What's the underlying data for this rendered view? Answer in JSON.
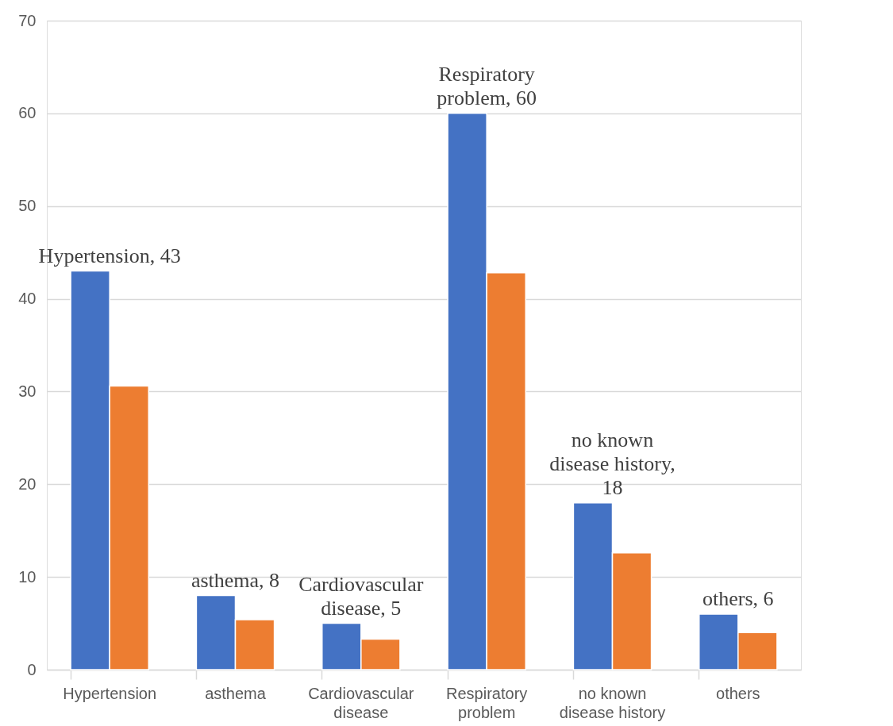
{
  "chart_data": {
    "type": "bar",
    "categories": [
      "Hypertension",
      "asthema",
      "Cardiovascular disease",
      "Respiratory problem",
      "no known disease history",
      "others"
    ],
    "series": [
      {
        "color": "#4472c4",
        "values": [
          43,
          8,
          5,
          60,
          18,
          6
        ],
        "value_labels": [
          "Hypertension, 43",
          "asthema, 8",
          "Cardiovascular disease, 5",
          "Respiratory problem, 60",
          "no known disease history, 18",
          "others, 6"
        ]
      },
      {
        "color": "#ed7d31",
        "values": [
          30.6,
          5.4,
          3.3,
          42.8,
          12.6,
          4.0
        ]
      }
    ],
    "ylim": [
      0,
      70
    ],
    "yticks": [
      0,
      10,
      20,
      30,
      40,
      50,
      60,
      70
    ],
    "grid": "y"
  }
}
